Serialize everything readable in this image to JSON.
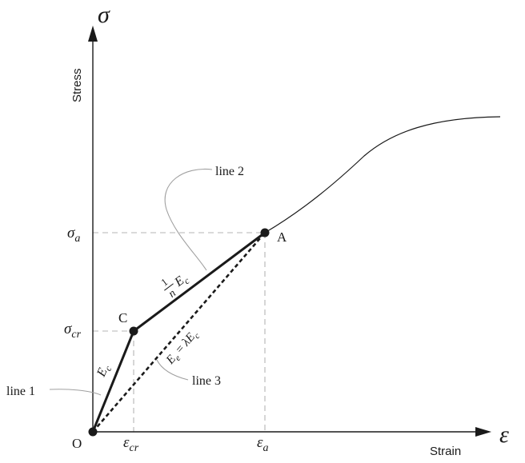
{
  "axes": {
    "y_symbol": "σ",
    "y_title": "Stress",
    "x_symbol": "ε",
    "x_title": "Strain",
    "origin": "O"
  },
  "ticks": {
    "sigma_a": {
      "base": "σ",
      "sub": "a"
    },
    "sigma_cr": {
      "base": "σ",
      "sub": "cr"
    },
    "eps_cr": {
      "base": "ε",
      "sub": "cr"
    },
    "eps_a": {
      "base": "ε",
      "sub": "a"
    }
  },
  "points": {
    "C": "C",
    "A": "A"
  },
  "segment_labels": {
    "line1_modulus": {
      "base": "E",
      "sub": "c"
    },
    "line2_modulus": {
      "numerator": "1",
      "denominator": "n",
      "base": "E",
      "sub": "c"
    },
    "line3_modulus": {
      "lhs": "E",
      "lhs_sub": "e",
      "equals": " = ",
      "coef": "λ",
      "base": "E",
      "sub": "c"
    }
  },
  "callouts": {
    "line1": "line 1",
    "line2": "line 2",
    "line3": "line 3"
  }
}
